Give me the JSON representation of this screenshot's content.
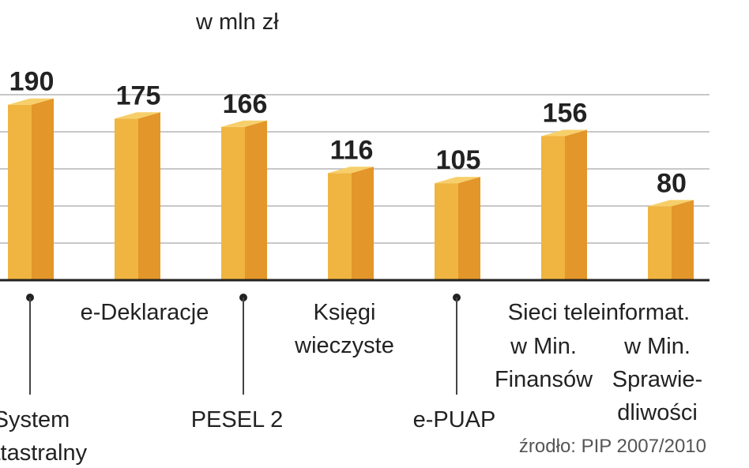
{
  "chart_data": {
    "type": "bar",
    "unit_label": "w mln zł",
    "source": "źrodło: PIP 2007/2010",
    "categories": [
      "System katastralny",
      "e-Deklaracje",
      "PESEL 2",
      "Księgi wieczyste",
      "e-PUAP",
      "Sieci teleinformat. w Min. Finansów",
      "Sieci teleinformat. w Min. Sprawiedliwości"
    ],
    "values": [
      190,
      175,
      166,
      116,
      105,
      156,
      80
    ],
    "category_label_lines": [
      [
        "System",
        "katastralny"
      ],
      [
        "e-Deklaracje"
      ],
      [
        "PESEL 2"
      ],
      [
        "Księgi",
        "wieczyste"
      ],
      [
        "e-PUAP"
      ],
      [
        "w Min.",
        "Finansów"
      ],
      [
        "w Min.",
        "Sprawie-",
        "dliwości"
      ]
    ],
    "shared_label": "Sieci teleinformat.",
    "grid": true,
    "colors": {
      "bar_front": "#f0b440",
      "bar_side": "#e3962a",
      "bar_top": "#f7cf6a",
      "grid": "#c8c8c8",
      "baseline": "#222222",
      "text": "#222222"
    }
  }
}
